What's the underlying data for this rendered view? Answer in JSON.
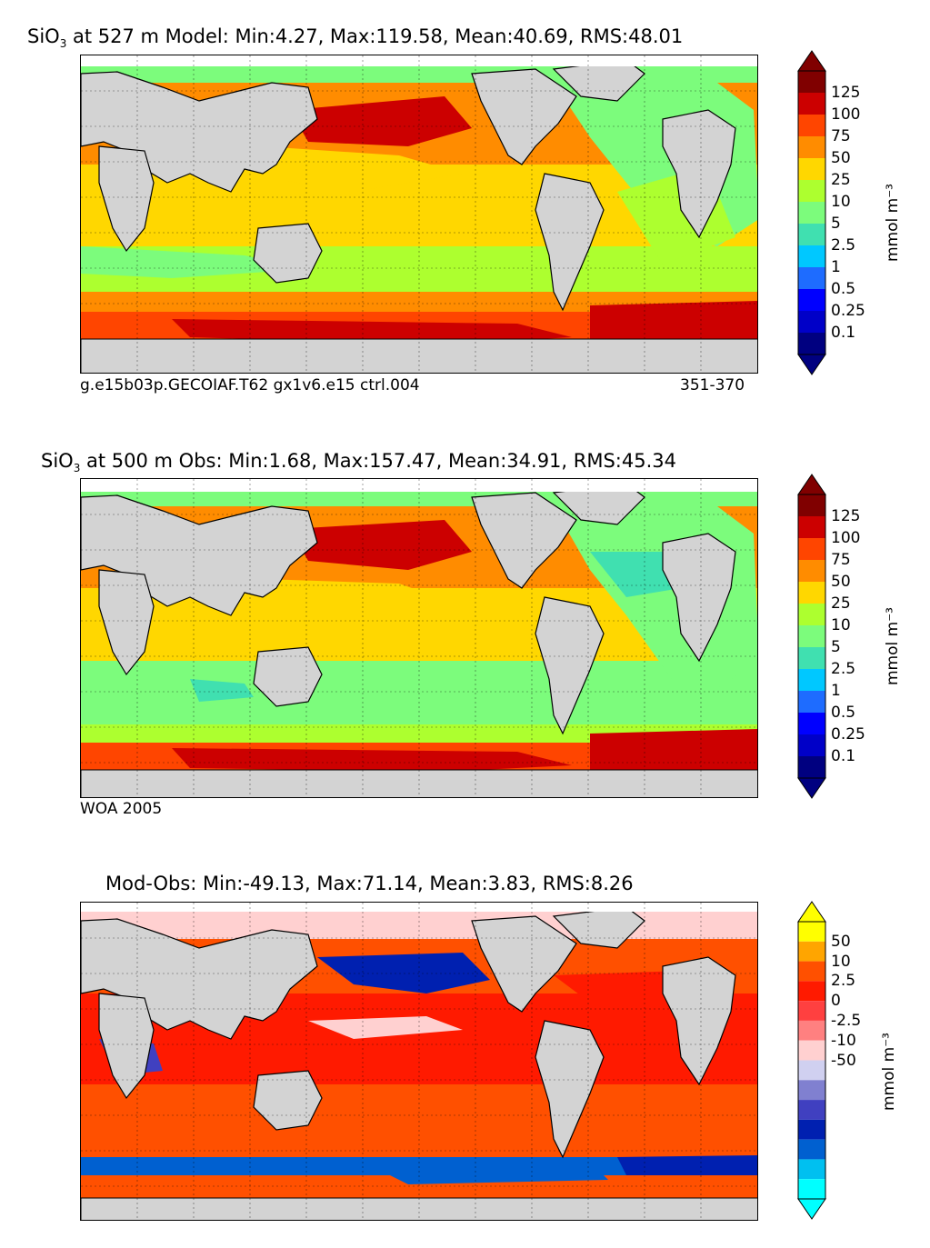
{
  "panels": [
    {
      "id": "model",
      "title_var": "SiO",
      "title_sub": "3",
      "title_rest": " at 527 m Model: Min:4.27, Max:119.58, Mean:40.69, RMS:48.01",
      "caption_left": "g.e15b03p.GECOIAF.T62 gx1v6.e15 ctrl.004",
      "caption_right": "351-370",
      "units": "mmol m⁻³"
    },
    {
      "id": "obs",
      "title_var": "SiO",
      "title_sub": "3",
      "title_rest": " at 500 m Obs: Min:1.68, Max:157.47, Mean:34.91, RMS:45.34",
      "caption_left": "WOA 2005",
      "caption_right": "",
      "units": "mmol m⁻³"
    },
    {
      "id": "diff",
      "title_var": "",
      "title_sub": "",
      "title_rest": "Mod-Obs: Min:-49.13, Max:71.14, Mean:3.83, RMS:8.26",
      "caption_left": "",
      "caption_right": "",
      "units": "mmol m⁻³"
    }
  ],
  "chart_data": [
    {
      "type": "heatmap",
      "title": "SiO3 at 527 m Model: Min:4.27, Max:119.58, Mean:40.69, RMS:48.01",
      "variable": "SiO3",
      "depth_m": 527,
      "source": "Model",
      "stats": {
        "min": 4.27,
        "max": 119.58,
        "mean": 40.69,
        "rms": 48.01
      },
      "colorbar": {
        "units": "mmol m⁻³",
        "extend": "both",
        "ticks": [
          "125",
          "100",
          "75",
          "50",
          "25",
          "10",
          "5",
          "2.5",
          "1",
          "0.5",
          "0.25",
          "0.1"
        ],
        "colors_top_to_bottom": [
          "#800000",
          "#cc0000",
          "#ff4500",
          "#ff8c00",
          "#ffd700",
          "#adff2f",
          "#7cfc7c",
          "#40e0b0",
          "#00c8ff",
          "#1e6cff",
          "#0000ff",
          "#0000c8",
          "#000080"
        ],
        "max_arrow_color": "#000000",
        "min_arrow_color": "#000000"
      },
      "footer_left": "g.e15b03p.GECOIAF.T62 gx1v6.e15 ctrl.004",
      "footer_right": "351-370"
    },
    {
      "type": "heatmap",
      "title": "SiO3 at 500 m Obs: Min:1.68, Max:157.47, Mean:34.91, RMS:45.34",
      "variable": "SiO3",
      "depth_m": 500,
      "source": "Obs",
      "stats": {
        "min": 1.68,
        "max": 157.47,
        "mean": 34.91,
        "rms": 45.34
      },
      "colorbar": {
        "units": "mmol m⁻³",
        "extend": "both",
        "ticks": [
          "125",
          "100",
          "75",
          "50",
          "25",
          "10",
          "5",
          "2.5",
          "1",
          "0.5",
          "0.25",
          "0.1"
        ],
        "colors_top_to_bottom": [
          "#800000",
          "#cc0000",
          "#ff4500",
          "#ff8c00",
          "#ffd700",
          "#adff2f",
          "#7cfc7c",
          "#40e0b0",
          "#00c8ff",
          "#1e6cff",
          "#0000ff",
          "#0000c8",
          "#000080"
        ]
      },
      "footer_left": "WOA 2005"
    },
    {
      "type": "heatmap",
      "title": "Mod-Obs: Min:-49.13, Max:71.14, Mean:3.83, RMS:8.26",
      "stats": {
        "min": -49.13,
        "max": 71.14,
        "mean": 3.83,
        "rms": 8.26
      },
      "colorbar": {
        "units": "mmol m⁻³",
        "extend": "both",
        "ticks": [
          "50",
          "10",
          "2.5",
          "0",
          "-2.5",
          "-10",
          "-50"
        ],
        "colors_top_to_bottom": [
          "#ffff00",
          "#ffa500",
          "#ff5000",
          "#ff1a00",
          "#ff4040",
          "#ff8080",
          "#ffd0d0",
          "#d0d0f0",
          "#8080d0",
          "#4040c0",
          "#0020b0",
          "#0060d0",
          "#00c0f0",
          "#00ffff"
        ]
      }
    }
  ]
}
